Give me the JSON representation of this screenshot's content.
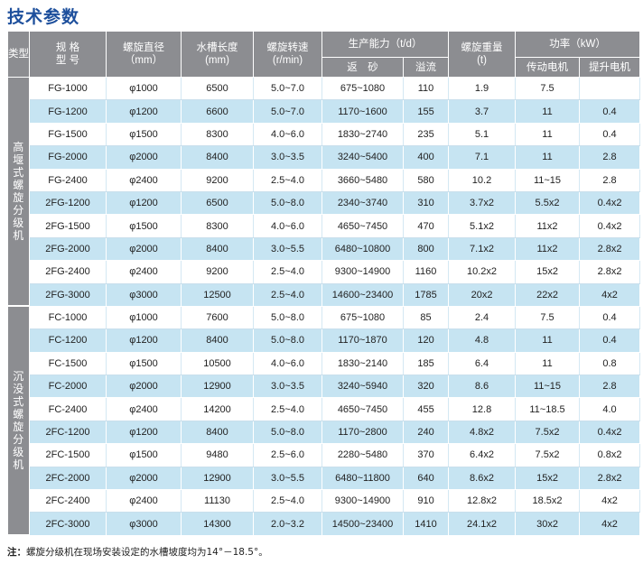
{
  "title": "技术参数",
  "headers": {
    "type": "类型",
    "model_l1": "规 格",
    "model_l2": "型 号",
    "diameter_l1": "螺旋直径",
    "diameter_l2": "（mm）",
    "length_l1": "水槽长度",
    "length_l2": "(mm)",
    "speed_l1": "螺旋转速",
    "speed_l2": "(r/min)",
    "capacity": "生产能力（t/d）",
    "sand": "返　砂",
    "overflow": "溢流",
    "weight_l1": "螺旋重量",
    "weight_l2": "(t)",
    "power": "功率（kW）",
    "drive_motor": "传动电机",
    "lift_motor": "提升电机"
  },
  "groups": [
    {
      "category": "高堰式螺旋分级机",
      "rows": [
        [
          "FG-1000",
          "φ1000",
          "6500",
          "5.0~7.0",
          "675~1080",
          "110",
          "1.9",
          "7.5",
          ""
        ],
        [
          "FG-1200",
          "φ1200",
          "6600",
          "5.0~7.0",
          "1170~1600",
          "155",
          "3.7",
          "11",
          "0.4"
        ],
        [
          "FG-1500",
          "φ1500",
          "8300",
          "4.0~6.0",
          "1830~2740",
          "235",
          "5.1",
          "11",
          "0.4"
        ],
        [
          "FG-2000",
          "φ2000",
          "8400",
          "3.0~3.5",
          "3240~5400",
          "400",
          "7.1",
          "11",
          "2.8"
        ],
        [
          "FG-2400",
          "φ2400",
          "9200",
          "2.5~4.0",
          "3660~5480",
          "580",
          "10.2",
          "11~15",
          "2.8"
        ],
        [
          "2FG-1200",
          "φ1200",
          "6500",
          "5.0~8.0",
          "2340~3740",
          "310",
          "3.7x2",
          "5.5x2",
          "0.4x2"
        ],
        [
          "2FG-1500",
          "φ1500",
          "8300",
          "4.0~6.0",
          "4650~7450",
          "470",
          "5.1x2",
          "11x2",
          "0.4x2"
        ],
        [
          "2FG-2000",
          "φ2000",
          "8400",
          "3.0~5.5",
          "6480~10800",
          "800",
          "7.1x2",
          "11x2",
          "2.8x2"
        ],
        [
          "2FG-2400",
          "φ2400",
          "9200",
          "2.5~4.0",
          "9300~14900",
          "1160",
          "10.2x2",
          "15x2",
          "2.8x2"
        ],
        [
          "2FG-3000",
          "φ3000",
          "12500",
          "2.5~4.0",
          "14600~23400",
          "1785",
          "20x2",
          "22x2",
          "4x2"
        ]
      ]
    },
    {
      "category": "沉没式螺旋分级机",
      "rows": [
        [
          "FC-1000",
          "φ1000",
          "7600",
          "5.0~8.0",
          "675~1080",
          "85",
          "2.4",
          "7.5",
          "0.4"
        ],
        [
          "FC-1200",
          "φ1200",
          "8400",
          "5.0~8.0",
          "1170~1870",
          "120",
          "4.8",
          "11",
          "0.4"
        ],
        [
          "FC-1500",
          "φ1500",
          "10500",
          "4.0~6.0",
          "1830~2140",
          "185",
          "6.4",
          "11",
          "0.8"
        ],
        [
          "FC-2000",
          "φ2000",
          "12900",
          "3.0~3.5",
          "3240~5940",
          "320",
          "8.6",
          "11~15",
          "2.8"
        ],
        [
          "FC-2400",
          "φ2400",
          "14200",
          "2.5~4.0",
          "4650~7450",
          "455",
          "12.8",
          "11~18.5",
          "4.0"
        ],
        [
          "2FC-1200",
          "φ1200",
          "8400",
          "5.0~8.0",
          "1170~2800",
          "240",
          "4.8x2",
          "7.5x2",
          "0.4x2"
        ],
        [
          "2FC-1500",
          "φ1500",
          "9480",
          "2.5~6.0",
          "2280~5480",
          "370",
          "6.4x2",
          "7.5x2",
          "0.8x2"
        ],
        [
          "2FC-2000",
          "φ2000",
          "12900",
          "3.0~5.5",
          "6480~11800",
          "640",
          "8.6x2",
          "15x2",
          "2.8x2"
        ],
        [
          "2FC-2400",
          "φ2400",
          "11130",
          "2.5~4.0",
          "9300~14900",
          "910",
          "12.8x2",
          "18.5x2",
          "4x2"
        ],
        [
          "2FC-3000",
          "φ3000",
          "14300",
          "2.0~3.2",
          "14500~23400",
          "1410",
          "24.1x2",
          "30x2",
          "4x2"
        ]
      ]
    }
  ],
  "note_label": "注：",
  "note_text": "螺旋分级机在现场安装设定的水槽坡度均为14°－18.5°。"
}
